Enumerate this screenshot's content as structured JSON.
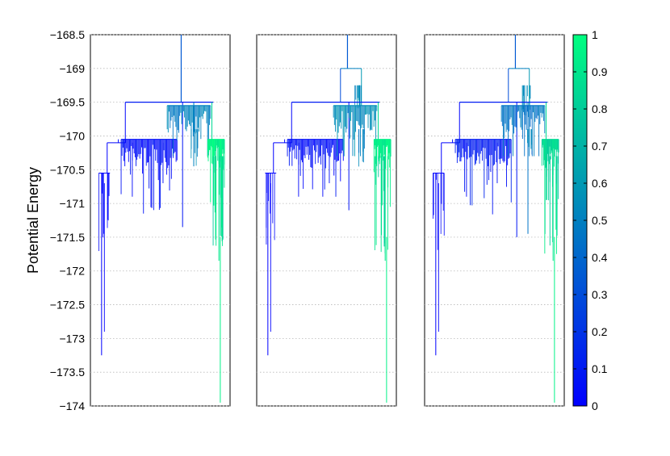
{
  "chart_data": {
    "type": "tree",
    "description_of_marks": "disconnectivity graph (three panels sharing a potential-energy axis), branches colored by a 0-1 colormap from blue to green",
    "ylabel": "Potential Energy",
    "ylim": [
      -174,
      -168.5
    ],
    "y_ticks": [
      "−168.5",
      "−169",
      "−169.5",
      "−170",
      "−170.5",
      "−171",
      "−171.5",
      "−172",
      "−172.5",
      "−173",
      "−173.5",
      "−174"
    ],
    "y_tick_values": [
      -168.5,
      -169,
      -169.5,
      -170,
      -170.5,
      -171,
      -171.5,
      -172,
      -172.5,
      -173,
      -173.5,
      -174
    ],
    "grid": "horizontal dotted",
    "panels": [
      {
        "name": "left",
        "root_energy": -169.5,
        "clusters": [
          {
            "energy": -169.5,
            "min": -173.25,
            "color_value": 0.0
          },
          {
            "energy": -170.05,
            "min": -171.35,
            "color_value": 0.05
          },
          {
            "energy": -169.6,
            "min": -173.95,
            "color_value": 0.95
          },
          {
            "energy": -169.6,
            "min": -170.45,
            "color_value": 0.5
          }
        ]
      },
      {
        "name": "middle",
        "root_energy": -169.0,
        "clusters": [
          {
            "energy": -169.5,
            "min": -173.25,
            "color_value": 0.0
          },
          {
            "energy": -170.05,
            "min": -171.1,
            "color_value": 0.05
          },
          {
            "energy": -169.6,
            "min": -173.95,
            "color_value": 0.95
          },
          {
            "energy": -169.0,
            "min": -169.55,
            "color_value": 0.55
          }
        ]
      },
      {
        "name": "right",
        "root_energy": -169.0,
        "clusters": [
          {
            "energy": -169.5,
            "min": -173.25,
            "color_value": 0.05
          },
          {
            "energy": -170.05,
            "min": -171.5,
            "color_value": 0.1
          },
          {
            "energy": -169.6,
            "min": -173.95,
            "color_value": 0.85
          },
          {
            "energy": -169.5,
            "min": -171.45,
            "color_value": 0.45
          }
        ]
      }
    ],
    "colorbar": {
      "min": 0,
      "max": 1,
      "ticks": [
        "0",
        "0.1",
        "0.2",
        "0.3",
        "0.4",
        "0.5",
        "0.6",
        "0.7",
        "0.8",
        "0.9",
        "1"
      ],
      "color_low": "#0000ff",
      "color_high": "#00ff80"
    }
  }
}
